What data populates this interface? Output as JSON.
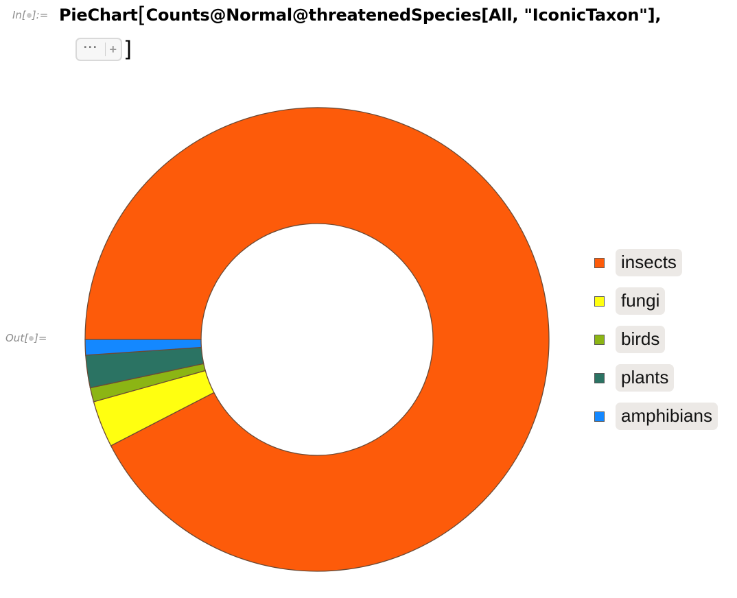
{
  "notebook": {
    "in_label": "In[",
    "in_label_end": "]:=",
    "out_label": "Out[",
    "out_label_end": "]=",
    "input_code_head": "PieChart",
    "input_code_body": "Counts@Normal@threatenedSpecies[All, \"IconicTaxon\"],",
    "options_ellipsis": "···",
    "options_plus": "+",
    "open_bracket": "[",
    "close_bracket": "]"
  },
  "chart_data": {
    "type": "pie",
    "style": "donut",
    "inner_radius_fraction": 0.5,
    "legend_position": "right",
    "categories": [
      "insects",
      "fungi",
      "birds",
      "plants",
      "amphibians"
    ],
    "values": [
      93.9,
      3.3,
      1.0,
      2.3,
      1.1
    ],
    "colors": [
      "#fd5b0a",
      "#ffff10",
      "#8cb514",
      "#2b7363",
      "#1488ff"
    ],
    "start_angle_deg": 180,
    "direction": "clockwise"
  }
}
